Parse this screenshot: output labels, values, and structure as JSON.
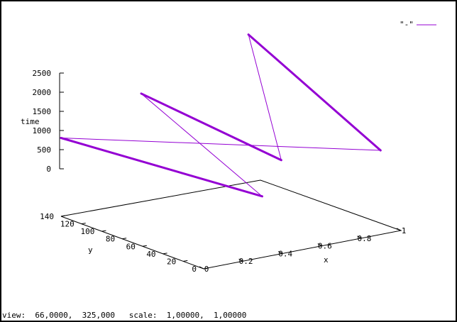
{
  "status_bar": {
    "text": "view:  66,0000,  325,000   scale:  1,00000,  1,00000"
  },
  "colors": {
    "series": "#9400d3",
    "axes": "#000000",
    "background": "#ffffff"
  },
  "chart_data": {
    "type": "line",
    "view": "3d-surface-splot",
    "title": "",
    "xlabel": "x",
    "ylabel": "y",
    "zlabel": "time",
    "x_ticks": [
      "0",
      "0.2",
      "0.4",
      "0.6",
      "0.8",
      "1"
    ],
    "y_ticks": [
      "0",
      "20",
      "40",
      "60",
      "80",
      "100",
      "120",
      "140"
    ],
    "z_ticks": [
      "0",
      "500",
      "1000",
      "1500",
      "2000",
      "2500"
    ],
    "xlim": [
      0,
      1
    ],
    "ylim": [
      0,
      140
    ],
    "zlim": [
      0,
      2500
    ],
    "grid": false,
    "legend_position": "top-right",
    "series": [
      {
        "name": "\"-\"",
        "points": [
          {
            "x": 0.0,
            "y": 140,
            "z": 750
          },
          {
            "x": 0.4,
            "y": 20,
            "z": 0
          },
          {
            "x": 0.2,
            "y": 100,
            "z": 2100
          },
          {
            "x": 0.6,
            "y": 40,
            "z": 550
          },
          {
            "x": 0.95,
            "y": 140,
            "z": 2500
          },
          {
            "x": 1.0,
            "y": 20,
            "z": 600
          },
          {
            "x": 0.0,
            "y": 140,
            "z": 750
          }
        ]
      }
    ]
  }
}
